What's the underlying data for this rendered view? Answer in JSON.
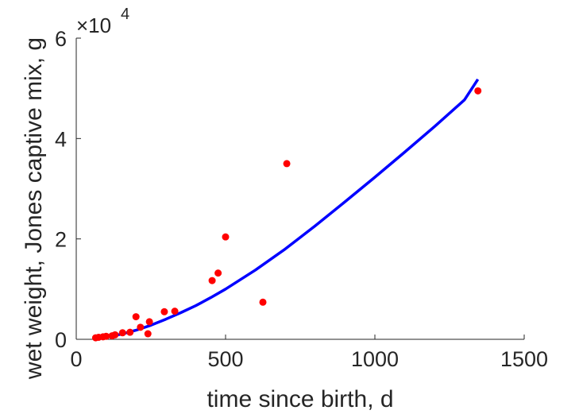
{
  "chart_data": {
    "type": "scatter",
    "xlabel": "time since birth, d",
    "ylabel": "wet weight, Jones captive mix, g",
    "xlim": [
      0,
      1500
    ],
    "ylim": [
      0,
      60000
    ],
    "x_ticks": [
      0,
      500,
      1000,
      1500
    ],
    "x_tick_labels": [
      "0",
      "500",
      "1000",
      "1500"
    ],
    "y_ticks": [
      0,
      20000,
      40000,
      60000
    ],
    "y_tick_labels": [
      "0",
      "2",
      "4",
      "6"
    ],
    "y_exponent": {
      "base": "×10",
      "power": "4"
    },
    "grid": false,
    "series": [
      {
        "type": "scatter",
        "color": "#ff0000",
        "points": [
          [
            65,
            300
          ],
          [
            75,
            400
          ],
          [
            90,
            500
          ],
          [
            100,
            600
          ],
          [
            120,
            700
          ],
          [
            130,
            900
          ],
          [
            155,
            1300
          ],
          [
            180,
            1400
          ],
          [
            200,
            4500
          ],
          [
            215,
            2400
          ],
          [
            240,
            1100
          ],
          [
            245,
            3500
          ],
          [
            295,
            5500
          ],
          [
            330,
            5600
          ],
          [
            455,
            11700
          ],
          [
            475,
            13200
          ],
          [
            500,
            20400
          ],
          [
            625,
            7400
          ],
          [
            705,
            35000
          ],
          [
            1345,
            49500
          ]
        ]
      },
      {
        "type": "line",
        "color": "#0000ff",
        "points": [
          [
            65,
            200
          ],
          [
            100,
            500
          ],
          [
            150,
            1000
          ],
          [
            200,
            1800
          ],
          [
            250,
            2800
          ],
          [
            300,
            4000
          ],
          [
            350,
            5300
          ],
          [
            400,
            6700
          ],
          [
            450,
            8300
          ],
          [
            500,
            10000
          ],
          [
            600,
            13800
          ],
          [
            700,
            18000
          ],
          [
            800,
            22600
          ],
          [
            900,
            27400
          ],
          [
            1000,
            32300
          ],
          [
            1100,
            37300
          ],
          [
            1200,
            42400
          ],
          [
            1300,
            47700
          ],
          [
            1345,
            51800
          ]
        ]
      }
    ]
  }
}
